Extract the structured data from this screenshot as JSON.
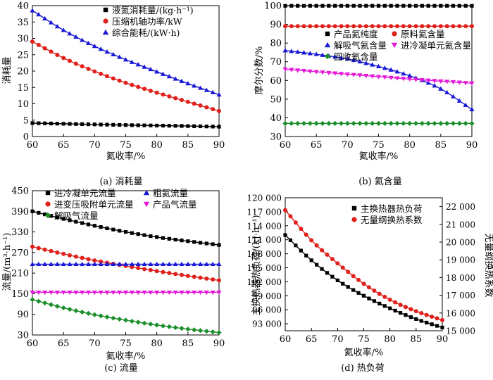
{
  "chart_data": [
    {
      "id": "a",
      "type": "line",
      "caption": "(a) 消耗量",
      "xlabel": "氦收率/%",
      "ylabel": "消耗量",
      "xlim": [
        60,
        90
      ],
      "ylim": [
        0,
        40
      ],
      "xticks": [
        60,
        65,
        70,
        75,
        80,
        85,
        90
      ],
      "yticks": [
        0,
        5,
        10,
        15,
        20,
        25,
        30,
        35,
        40
      ],
      "grid": false,
      "legend": "top-right",
      "series": [
        {
          "name": "液氮消耗量/(kg·h⁻¹)",
          "color": "#000000",
          "marker": "square",
          "x": [
            60,
            65,
            70,
            75,
            80,
            85,
            90
          ],
          "y": [
            4.1,
            3.9,
            3.7,
            3.5,
            3.35,
            3.2,
            3.0
          ]
        },
        {
          "name": "压缩机轴功率/kW",
          "color": "#e0201b",
          "marker": "circle",
          "x": [
            60,
            65,
            70,
            75,
            80,
            85,
            90
          ],
          "y": [
            29.0,
            24.0,
            19.9,
            16.4,
            13.4,
            10.6,
            7.8
          ]
        },
        {
          "name": "综合能耗/(kW·h)",
          "color": "#1a1ad6",
          "marker": "triangle",
          "x": [
            60,
            65,
            70,
            75,
            80,
            85,
            90
          ],
          "y": [
            38.5,
            32.5,
            27.6,
            23.5,
            19.8,
            16.2,
            12.8
          ]
        }
      ]
    },
    {
      "id": "b",
      "type": "line",
      "caption": "(b) 氦含量",
      "xlabel": "氦收率/%",
      "ylabel": "摩尔分数/%",
      "xlim": [
        60,
        90
      ],
      "ylim": [
        30,
        100
      ],
      "xticks": [
        60,
        65,
        70,
        75,
        80,
        85,
        90
      ],
      "yticks": [
        30,
        40,
        50,
        60,
        70,
        80,
        90,
        100
      ],
      "grid": false,
      "legend": "top-right",
      "series": [
        {
          "name": "产品氦纯度",
          "color": "#000000",
          "marker": "square",
          "x": [
            60,
            65,
            70,
            75,
            80,
            85,
            90
          ],
          "y": [
            99.9,
            99.9,
            99.9,
            99.9,
            99.9,
            99.9,
            99.9
          ]
        },
        {
          "name": "原料氦含量",
          "color": "#e0201b",
          "marker": "circle",
          "x": [
            60,
            65,
            70,
            75,
            80,
            85,
            90
          ],
          "y": [
            89.0,
            89.0,
            89.0,
            89.0,
            89.0,
            89.0,
            89.0
          ]
        },
        {
          "name": "解吸气氦含量",
          "color": "#1a1ad6",
          "marker": "triangle",
          "x": [
            60,
            65,
            70,
            75,
            80,
            85,
            90
          ],
          "y": [
            76.0,
            74.0,
            71.5,
            67.5,
            62.5,
            55.5,
            44.5
          ]
        },
        {
          "name": "进冷凝单元氦含量",
          "color": "#e41ad8",
          "marker": "triangle-down",
          "x": [
            60,
            65,
            70,
            75,
            80,
            85,
            90
          ],
          "y": [
            66.0,
            64.6,
            63.3,
            62.0,
            60.7,
            59.6,
            58.5
          ]
        },
        {
          "name": "回收氦含量",
          "color": "#1c8f2b",
          "marker": "diamond",
          "x": [
            60,
            65,
            70,
            75,
            80,
            85,
            90
          ],
          "y": [
            37.0,
            37.0,
            37.0,
            37.0,
            37.0,
            37.0,
            37.0
          ]
        }
      ]
    },
    {
      "id": "c",
      "type": "line",
      "caption": "(c) 流量",
      "xlabel": "氦收率/%",
      "ylabel": "流量/(m³·h⁻¹)",
      "xlim": [
        60,
        90
      ],
      "ylim": [
        30,
        450
      ],
      "xticks": [
        60,
        65,
        70,
        75,
        80,
        85,
        90
      ],
      "yticks": [
        30,
        90,
        150,
        210,
        270,
        330,
        390,
        450
      ],
      "grid": false,
      "legend": "top",
      "series": [
        {
          "name": "进冷凝单元流量",
          "color": "#000000",
          "marker": "square",
          "x": [
            60,
            65,
            70,
            75,
            80,
            85,
            90
          ],
          "y": [
            390,
            368,
            348,
            330,
            315,
            303,
            292
          ]
        },
        {
          "name": "进变压吸附单元流量",
          "color": "#e0201b",
          "marker": "circle",
          "x": [
            60,
            65,
            70,
            75,
            80,
            85,
            90
          ],
          "y": [
            287,
            266,
            247,
            231,
            216,
            202,
            189
          ]
        },
        {
          "name": "粗氦流量",
          "color": "#1a1ad6",
          "marker": "triangle",
          "x": [
            60,
            65,
            70,
            75,
            80,
            85,
            90
          ],
          "y": [
            236,
            236,
            236,
            236,
            236,
            236,
            236
          ]
        },
        {
          "name": "产品气流量",
          "color": "#e41ad8",
          "marker": "triangle-down",
          "x": [
            60,
            65,
            70,
            75,
            80,
            85,
            90
          ],
          "y": [
            154,
            154,
            154,
            154,
            154,
            154,
            154
          ]
        },
        {
          "name": "解吸气流量",
          "color": "#1c8f2b",
          "marker": "diamond",
          "x": [
            60,
            65,
            70,
            75,
            80,
            85,
            90
          ],
          "y": [
            133,
            109,
            89,
            73,
            59,
            47,
            37
          ]
        }
      ]
    },
    {
      "id": "d",
      "type": "line",
      "caption": "(d) 热负荷",
      "xlabel": "氦收率/%",
      "ylabel": "主换热器热负荷/(kJ·h⁻¹)",
      "ylabel_right": "无量纲换热系数",
      "xlim": [
        60,
        90
      ],
      "ylim": [
        91500,
        120000
      ],
      "ylim_right": [
        15000,
        22500
      ],
      "xticks": [
        60,
        65,
        70,
        75,
        80,
        85,
        90
      ],
      "yticks": [
        93000,
        96000,
        99000,
        102000,
        105000,
        108000,
        111000,
        114000,
        117000,
        120000
      ],
      "yticks_labels": [
        "93 000",
        "96 000",
        "99 000",
        "102 000",
        "105 000",
        "108 000",
        "111 000",
        "114 000",
        "117 000",
        "120 000"
      ],
      "yticks_right": [
        15000,
        16000,
        17000,
        18000,
        19000,
        20000,
        21000,
        22000
      ],
      "yticks_right_labels": [
        "15 000",
        "16 000",
        "17 000",
        "18 000",
        "19 000",
        "20 000",
        "21 000",
        "22 000"
      ],
      "grid": false,
      "legend": "top-right",
      "series": [
        {
          "name": "主换热器热负荷",
          "axis": "left",
          "color": "#000000",
          "marker": "square",
          "x": [
            60,
            65,
            70,
            75,
            80,
            85,
            90
          ],
          "y": [
            112000,
            106600,
            102300,
            99000,
            96300,
            94000,
            92200
          ]
        },
        {
          "name": "无量纲换热系数",
          "axis": "right",
          "color": "#e0201b",
          "marker": "circle",
          "x": [
            60,
            65,
            70,
            75,
            80,
            85,
            90
          ],
          "y": [
            21800,
            20100,
            18800,
            17650,
            16750,
            16100,
            15600
          ]
        }
      ]
    }
  ]
}
